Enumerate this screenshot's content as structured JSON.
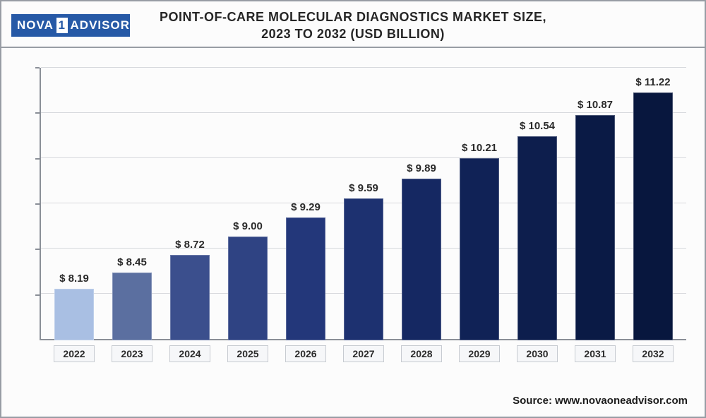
{
  "logo": {
    "left": "NOVA",
    "mid": "1",
    "right": "ADVISOR"
  },
  "title_line1": "Point-of-care Molecular Diagnostics Market Size,",
  "title_line2": "2023 To 2032 (USD Billion)",
  "source_label": "Source: www.novaoneadvisor.com",
  "chart": {
    "type": "bar",
    "baseline_value": 7.4,
    "max_value": 11.6,
    "grid_count": 6,
    "grid_color": "#d7d9dd",
    "axis_color": "#8a8f97",
    "background_color": "#fcfcfc",
    "value_prefix": "$ ",
    "value_fontsize": 15,
    "label_fontsize": 14,
    "bars": [
      {
        "label": "2022",
        "value": 8.19,
        "color": "#a9bfe3"
      },
      {
        "label": "2023",
        "value": 8.45,
        "color": "#5b6fa0"
      },
      {
        "label": "2024",
        "value": 8.72,
        "color": "#3b4f8d"
      },
      {
        "label": "2025",
        "value": 9.0,
        "color": "#2f4383"
      },
      {
        "label": "2026",
        "value": 9.29,
        "color": "#23377a"
      },
      {
        "label": "2027",
        "value": 9.59,
        "color": "#1d3170"
      },
      {
        "label": "2028",
        "value": 9.89,
        "color": "#152862"
      },
      {
        "label": "2029",
        "value": 10.21,
        "color": "#102256"
      },
      {
        "label": "2030",
        "value": 10.54,
        "color": "#0d1e4d"
      },
      {
        "label": "2031",
        "value": 10.87,
        "color": "#0a1a45"
      },
      {
        "label": "2032",
        "value": 11.22,
        "color": "#08173e"
      }
    ]
  }
}
